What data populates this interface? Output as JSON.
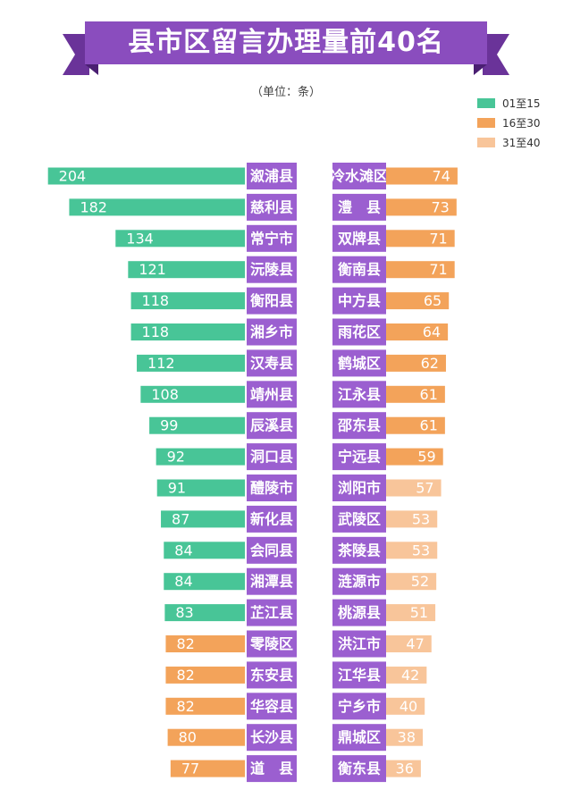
{
  "title": "县市区留言办理量前40名",
  "unit": "（单位：条）",
  "colors": {
    "banner": "#8a4dbe",
    "banner_dark": "#5e2a8c",
    "label_bg": "#9b5fd0",
    "rank_1_15": "#48c597",
    "rank_16_30": "#f3a35a",
    "rank_31_40": "#f8c59a"
  },
  "legend": [
    {
      "label": "01至15",
      "color": "#48c597"
    },
    {
      "label": "16至30",
      "color": "#f3a35a"
    },
    {
      "label": "31至40",
      "color": "#f8c59a"
    }
  ],
  "chart_data": {
    "type": "bar",
    "title": "县市区留言办理量前40名",
    "unit": "条",
    "left_column": {
      "categories": [
        "溆浦县",
        "慈利县",
        "常宁市",
        "沅陵县",
        "衡阳县",
        "湘乡市",
        "汉寿县",
        "靖州县",
        "辰溪县",
        "洞口县",
        "醴陵市",
        "新化县",
        "会同县",
        "湘潭县",
        "芷江县",
        "零陵区",
        "东安县",
        "华容县",
        "长沙县",
        "道　县"
      ],
      "values": [
        204,
        182,
        134,
        121,
        118,
        118,
        112,
        108,
        99,
        92,
        91,
        87,
        84,
        84,
        83,
        82,
        82,
        82,
        80,
        77
      ],
      "groups": [
        "01至15",
        "01至15",
        "01至15",
        "01至15",
        "01至15",
        "01至15",
        "01至15",
        "01至15",
        "01至15",
        "01至15",
        "01至15",
        "01至15",
        "01至15",
        "01至15",
        "01至15",
        "16至30",
        "16至30",
        "16至30",
        "16至30",
        "16至30"
      ]
    },
    "right_column": {
      "categories": [
        "冷水滩区",
        "澧　县",
        "双牌县",
        "衡南县",
        "中方县",
        "雨花区",
        "鹤城区",
        "江永县",
        "邵东县",
        "宁远县",
        "浏阳市",
        "武陵区",
        "茶陵县",
        "涟源市",
        "桃源县",
        "洪江市",
        "江华县",
        "宁乡市",
        "鼎城区",
        "衡东县"
      ],
      "values": [
        74,
        73,
        71,
        71,
        65,
        64,
        62,
        61,
        61,
        59,
        57,
        53,
        53,
        52,
        51,
        47,
        42,
        40,
        38,
        36
      ],
      "groups": [
        "16至30",
        "16至30",
        "16至30",
        "16至30",
        "16至30",
        "16至30",
        "16至30",
        "16至30",
        "16至30",
        "16至30",
        "31至40",
        "31至40",
        "31至40",
        "31至40",
        "31至40",
        "31至40",
        "31至40",
        "31至40",
        "31至40",
        "31至40"
      ]
    }
  }
}
